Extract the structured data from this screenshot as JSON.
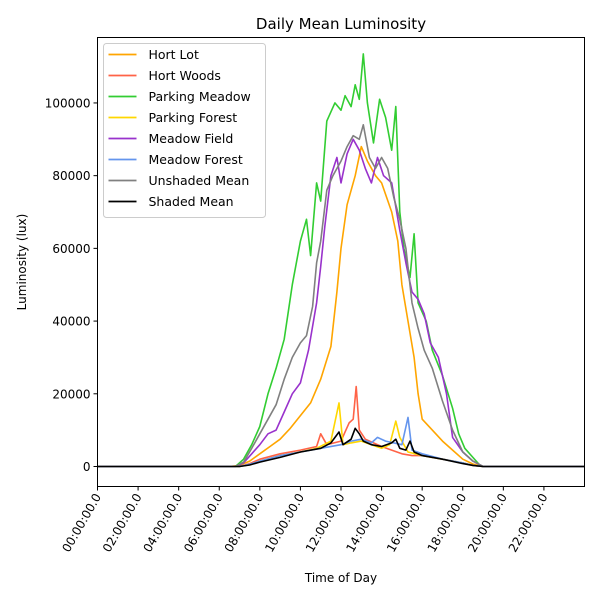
{
  "chart_data": {
    "type": "line",
    "title": "Daily Mean Luminosity",
    "xlabel": "Time of Day",
    "ylabel": "Luminosity (lux)",
    "x_unit": "hours",
    "xlim": [
      0,
      24
    ],
    "ylim": [
      -5500,
      118000
    ],
    "x_ticks": [
      0,
      2,
      4,
      6,
      8,
      10,
      12,
      14,
      16,
      18,
      20,
      22
    ],
    "x_tick_labels": [
      "00:00:00.0",
      "02:00:00.0",
      "04:00:00.0",
      "06:00:00.0",
      "08:00:00.0",
      "10:00:00.0",
      "12:00:00.0",
      "14:00:00.0",
      "16:00:00.0",
      "18:00:00.0",
      "20:00:00.0",
      "22:00:00.0"
    ],
    "y_ticks": [
      0,
      20000,
      40000,
      60000,
      80000,
      100000
    ],
    "y_tick_labels": [
      "0",
      "20000",
      "40000",
      "60000",
      "80000",
      "100000"
    ],
    "grid": false,
    "legend_position": "upper-left",
    "series": [
      {
        "name": "Hort Lot",
        "color": "#ffa500",
        "points": [
          [
            0,
            0
          ],
          [
            6.5,
            0
          ],
          [
            7.0,
            300
          ],
          [
            7.5,
            1500
          ],
          [
            8.0,
            3500
          ],
          [
            8.5,
            5500
          ],
          [
            9.0,
            7500
          ],
          [
            9.5,
            10500
          ],
          [
            10.0,
            14000
          ],
          [
            10.5,
            17500
          ],
          [
            11.0,
            24000
          ],
          [
            11.5,
            33000
          ],
          [
            11.8,
            48000
          ],
          [
            12.0,
            60000
          ],
          [
            12.3,
            72000
          ],
          [
            12.7,
            80000
          ],
          [
            13.0,
            88000
          ],
          [
            13.3,
            84000
          ],
          [
            13.7,
            80000
          ],
          [
            14.0,
            78000
          ],
          [
            14.5,
            70000
          ],
          [
            14.8,
            62000
          ],
          [
            15.0,
            50000
          ],
          [
            15.3,
            40000
          ],
          [
            15.6,
            30000
          ],
          [
            15.8,
            20000
          ],
          [
            16.0,
            13000
          ],
          [
            16.5,
            10000
          ],
          [
            17.0,
            7000
          ],
          [
            17.5,
            4500
          ],
          [
            18.0,
            2000
          ],
          [
            18.5,
            700
          ],
          [
            19.0,
            0
          ],
          [
            24,
            0
          ]
        ]
      },
      {
        "name": "Hort Woods",
        "color": "#ff6347",
        "points": [
          [
            0,
            0
          ],
          [
            7.0,
            0
          ],
          [
            7.5,
            800
          ],
          [
            8.0,
            2000
          ],
          [
            9.0,
            3500
          ],
          [
            10.0,
            4500
          ],
          [
            10.8,
            5500
          ],
          [
            11.0,
            9000
          ],
          [
            11.3,
            6000
          ],
          [
            12.0,
            7000
          ],
          [
            12.4,
            12000
          ],
          [
            12.6,
            13000
          ],
          [
            12.75,
            22000
          ],
          [
            12.9,
            10000
          ],
          [
            13.2,
            7500
          ],
          [
            14.0,
            5500
          ],
          [
            14.5,
            4500
          ],
          [
            15.0,
            3500
          ],
          [
            15.5,
            3000
          ],
          [
            16.0,
            3000
          ],
          [
            17.0,
            2000
          ],
          [
            18.0,
            1000
          ],
          [
            18.5,
            300
          ],
          [
            19.0,
            0
          ],
          [
            24,
            0
          ]
        ]
      },
      {
        "name": "Parking Meadow",
        "color": "#32cd32",
        "points": [
          [
            0,
            0
          ],
          [
            6.8,
            0
          ],
          [
            7.2,
            2000
          ],
          [
            7.6,
            6000
          ],
          [
            8.0,
            11000
          ],
          [
            8.4,
            20000
          ],
          [
            8.8,
            27000
          ],
          [
            9.2,
            35000
          ],
          [
            9.6,
            50000
          ],
          [
            10.0,
            62000
          ],
          [
            10.3,
            68000
          ],
          [
            10.5,
            58000
          ],
          [
            10.8,
            78000
          ],
          [
            11.0,
            73000
          ],
          [
            11.3,
            95000
          ],
          [
            11.7,
            100000
          ],
          [
            12.0,
            98000
          ],
          [
            12.2,
            102000
          ],
          [
            12.5,
            99000
          ],
          [
            12.7,
            105000
          ],
          [
            12.9,
            101000
          ],
          [
            13.1,
            113500
          ],
          [
            13.3,
            100000
          ],
          [
            13.6,
            89000
          ],
          [
            13.9,
            101000
          ],
          [
            14.2,
            96000
          ],
          [
            14.5,
            87000
          ],
          [
            14.7,
            99000
          ],
          [
            14.9,
            70000
          ],
          [
            15.1,
            60000
          ],
          [
            15.4,
            52000
          ],
          [
            15.6,
            64000
          ],
          [
            15.8,
            45000
          ],
          [
            16.2,
            40000
          ],
          [
            16.5,
            32000
          ],
          [
            17.0,
            25000
          ],
          [
            17.5,
            16000
          ],
          [
            17.8,
            9000
          ],
          [
            18.1,
            5000
          ],
          [
            18.5,
            2500
          ],
          [
            18.8,
            600
          ],
          [
            19.0,
            0
          ],
          [
            24,
            0
          ]
        ]
      },
      {
        "name": "Parking Forest",
        "color": "#ffd700",
        "points": [
          [
            0,
            0
          ],
          [
            7.0,
            0
          ],
          [
            7.5,
            500
          ],
          [
            8.0,
            1500
          ],
          [
            9.0,
            3000
          ],
          [
            10.0,
            4000
          ],
          [
            10.8,
            5000
          ],
          [
            11.5,
            7000
          ],
          [
            11.9,
            17500
          ],
          [
            12.1,
            6000
          ],
          [
            12.5,
            6500
          ],
          [
            13.0,
            7000
          ],
          [
            13.5,
            6000
          ],
          [
            14.0,
            5000
          ],
          [
            14.4,
            6000
          ],
          [
            14.7,
            12500
          ],
          [
            14.9,
            8000
          ],
          [
            15.3,
            4000
          ],
          [
            16.0,
            3000
          ],
          [
            17.0,
            2000
          ],
          [
            18.0,
            1000
          ],
          [
            18.5,
            300
          ],
          [
            19.0,
            0
          ],
          [
            24,
            0
          ]
        ]
      },
      {
        "name": "Meadow Field",
        "color": "#9932cc",
        "points": [
          [
            0,
            0
          ],
          [
            6.8,
            0
          ],
          [
            7.2,
            1000
          ],
          [
            7.6,
            3500
          ],
          [
            8.0,
            6000
          ],
          [
            8.4,
            9000
          ],
          [
            8.8,
            10000
          ],
          [
            9.2,
            15000
          ],
          [
            9.6,
            20000
          ],
          [
            10.0,
            23000
          ],
          [
            10.4,
            32000
          ],
          [
            10.8,
            45000
          ],
          [
            11.0,
            55000
          ],
          [
            11.2,
            66000
          ],
          [
            11.5,
            80000
          ],
          [
            11.8,
            85000
          ],
          [
            12.0,
            78000
          ],
          [
            12.3,
            86000
          ],
          [
            12.6,
            90000
          ],
          [
            12.9,
            87000
          ],
          [
            13.2,
            82000
          ],
          [
            13.5,
            78000
          ],
          [
            13.8,
            85000
          ],
          [
            14.1,
            80000
          ],
          [
            14.5,
            78000
          ],
          [
            14.9,
            65000
          ],
          [
            15.2,
            56000
          ],
          [
            15.5,
            48000
          ],
          [
            15.8,
            46000
          ],
          [
            16.1,
            42000
          ],
          [
            16.4,
            34000
          ],
          [
            16.8,
            30000
          ],
          [
            17.2,
            20000
          ],
          [
            17.5,
            8000
          ],
          [
            18.0,
            4000
          ],
          [
            18.5,
            1500
          ],
          [
            19.0,
            0
          ],
          [
            24,
            0
          ]
        ]
      },
      {
        "name": "Meadow Forest",
        "color": "#6495ed",
        "points": [
          [
            0,
            0
          ],
          [
            7.0,
            0
          ],
          [
            7.5,
            600
          ],
          [
            8.0,
            1500
          ],
          [
            9.0,
            3000
          ],
          [
            10.0,
            4000
          ],
          [
            11.0,
            5000
          ],
          [
            12.0,
            6000
          ],
          [
            12.5,
            7000
          ],
          [
            13.0,
            7500
          ],
          [
            13.5,
            6500
          ],
          [
            13.8,
            8000
          ],
          [
            14.2,
            7000
          ],
          [
            15.0,
            6000
          ],
          [
            15.3,
            13500
          ],
          [
            15.5,
            4500
          ],
          [
            16.0,
            3500
          ],
          [
            17.0,
            2000
          ],
          [
            18.0,
            1000
          ],
          [
            18.5,
            300
          ],
          [
            19.0,
            0
          ],
          [
            24,
            0
          ]
        ]
      },
      {
        "name": "Unshaded Mean",
        "color": "#808080",
        "points": [
          [
            0,
            0
          ],
          [
            6.8,
            0
          ],
          [
            7.2,
            1200
          ],
          [
            7.6,
            5000
          ],
          [
            8.0,
            9000
          ],
          [
            8.4,
            13000
          ],
          [
            8.8,
            17000
          ],
          [
            9.2,
            24000
          ],
          [
            9.6,
            30000
          ],
          [
            10.0,
            34000
          ],
          [
            10.3,
            36000
          ],
          [
            10.6,
            44000
          ],
          [
            10.8,
            56000
          ],
          [
            11.0,
            62000
          ],
          [
            11.3,
            76000
          ],
          [
            11.6,
            80000
          ],
          [
            12.0,
            84000
          ],
          [
            12.3,
            88000
          ],
          [
            12.6,
            91000
          ],
          [
            12.9,
            90000
          ],
          [
            13.1,
            94000
          ],
          [
            13.4,
            85000
          ],
          [
            13.7,
            82000
          ],
          [
            14.0,
            85000
          ],
          [
            14.3,
            82000
          ],
          [
            14.6,
            74000
          ],
          [
            14.9,
            68000
          ],
          [
            15.2,
            60000
          ],
          [
            15.5,
            45000
          ],
          [
            15.8,
            38000
          ],
          [
            16.1,
            32000
          ],
          [
            16.5,
            27000
          ],
          [
            17.0,
            18000
          ],
          [
            17.5,
            10000
          ],
          [
            18.0,
            4000
          ],
          [
            18.5,
            1500
          ],
          [
            19.0,
            0
          ],
          [
            24,
            0
          ]
        ]
      },
      {
        "name": "Shaded Mean",
        "color": "#000000",
        "points": [
          [
            0,
            0
          ],
          [
            7.0,
            0
          ],
          [
            7.5,
            400
          ],
          [
            8.0,
            1200
          ],
          [
            9.0,
            2500
          ],
          [
            10.0,
            4000
          ],
          [
            11.0,
            5000
          ],
          [
            11.5,
            6500
          ],
          [
            11.9,
            9500
          ],
          [
            12.1,
            6000
          ],
          [
            12.5,
            7500
          ],
          [
            12.7,
            10500
          ],
          [
            12.9,
            9000
          ],
          [
            13.1,
            7000
          ],
          [
            13.5,
            6000
          ],
          [
            14.0,
            5500
          ],
          [
            14.5,
            6500
          ],
          [
            14.7,
            7500
          ],
          [
            14.9,
            5000
          ],
          [
            15.2,
            4500
          ],
          [
            15.4,
            7000
          ],
          [
            15.6,
            4000
          ],
          [
            16.0,
            3000
          ],
          [
            17.0,
            2000
          ],
          [
            18.0,
            800
          ],
          [
            18.5,
            300
          ],
          [
            19.0,
            0
          ],
          [
            24,
            0
          ]
        ]
      }
    ]
  }
}
